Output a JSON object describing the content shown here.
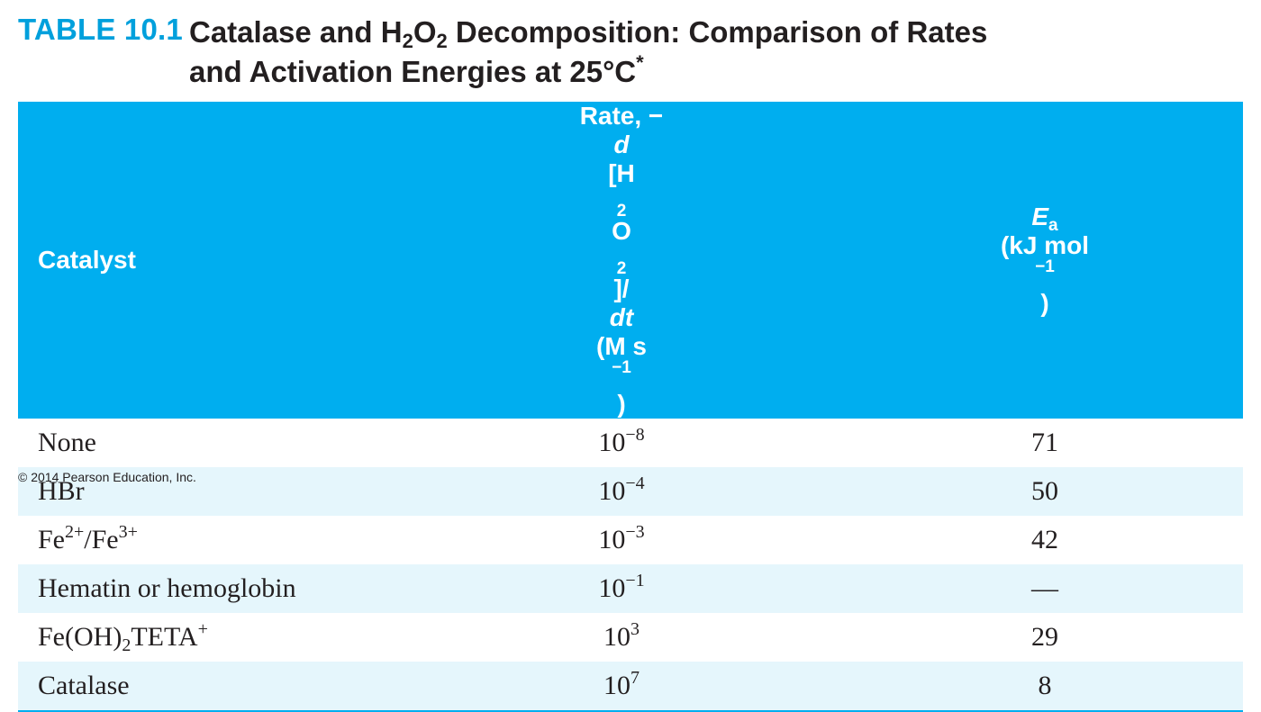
{
  "title": {
    "label": "TABLE 10.1",
    "text_part1": "Catalase and H",
    "sub1": "2",
    "text_part2": "O",
    "sub2": "2",
    "text_part3": " Decomposition: Comparison of Rates",
    "line2": "and Activation Energies at 25°C",
    "footnote_mark": "*"
  },
  "header": {
    "catalyst": "Catalyst",
    "rate": {
      "prefix": "Rate, −",
      "d1": "d",
      "bracket_open": "[H",
      "sub_h": "2",
      "o": "O",
      "sub_o": "2",
      "bracket_close": "]/",
      "d2": "dt",
      "unit": "(M s",
      "exp": "−1",
      "close": ")"
    },
    "ea": {
      "e": "E",
      "sub": "a",
      "unit": "(kJ mol",
      "exp": "−1",
      "close": ")"
    }
  },
  "rows": [
    {
      "catalyst": "None",
      "rate_base": "10",
      "rate_exp": "−8",
      "ea": "71"
    },
    {
      "catalyst": "HBr",
      "rate_base": "10",
      "rate_exp": "−4",
      "ea": "50"
    },
    {
      "catalyst_parts": [
        "Fe",
        "2+",
        "/Fe",
        "3+"
      ],
      "rate_base": "10",
      "rate_exp": "−3",
      "ea": "42"
    },
    {
      "catalyst": "Hematin or hemoglobin",
      "rate_base": "10",
      "rate_exp": "−1",
      "ea": "—"
    },
    {
      "catalyst_parts": [
        "Fe(OH)",
        "2",
        "TETA",
        "+"
      ],
      "rate_base": "10",
      "rate_exp": "3",
      "ea": "29"
    },
    {
      "catalyst": "Catalase",
      "rate_base": "10",
      "rate_exp": "7",
      "ea": "8"
    }
  ],
  "copyright": "© 2014 Pearson Education, Inc.",
  "colors": {
    "accent": "#00aeef",
    "stripe": "#e5f6fc",
    "label": "#00a0dc"
  }
}
